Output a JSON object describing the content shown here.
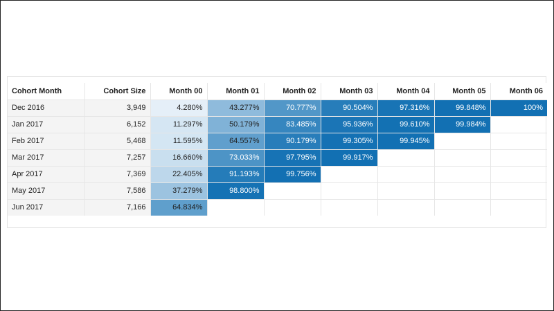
{
  "table": {
    "columns": [
      "Cohort Month",
      "Cohort Size",
      "Month 00",
      "Month 01",
      "Month 02",
      "Month 03",
      "Month 04",
      "Month 05",
      "Month 06"
    ],
    "rows": [
      {
        "cohort": "Dec 2016",
        "size": "3,949",
        "values": [
          "4.280%",
          "43.277%",
          "70.777%",
          "90.504%",
          "97.316%",
          "99.848%",
          "100%"
        ]
      },
      {
        "cohort": "Jan 2017",
        "size": "6,152",
        "values": [
          "11.297%",
          "50.179%",
          "83.485%",
          "95.936%",
          "99.610%",
          "99.984%",
          ""
        ]
      },
      {
        "cohort": "Feb 2017",
        "size": "5,468",
        "values": [
          "11.595%",
          "64.557%",
          "90.179%",
          "99.305%",
          "99.945%",
          "",
          ""
        ]
      },
      {
        "cohort": "Mar 2017",
        "size": "7,257",
        "values": [
          "16.660%",
          "73.033%",
          "97.795%",
          "99.917%",
          "",
          "",
          ""
        ]
      },
      {
        "cohort": "Apr 2017",
        "size": "7,369",
        "values": [
          "22.405%",
          "91.193%",
          "99.756%",
          "",
          "",
          "",
          ""
        ]
      },
      {
        "cohort": "May 2017",
        "size": "7,586",
        "values": [
          "37.279%",
          "98.800%",
          "",
          "",
          "",
          "",
          ""
        ]
      },
      {
        "cohort": "Jun 2017",
        "size": "7,166",
        "values": [
          "64.834%",
          "",
          "",
          "",
          "",
          "",
          ""
        ]
      }
    ]
  },
  "colors": {
    "low": "#eef5fb",
    "high": "#1270b3",
    "text_dark": "#222222",
    "text_light": "#ffffff",
    "first_col_bg": "#f4f4f4"
  }
}
